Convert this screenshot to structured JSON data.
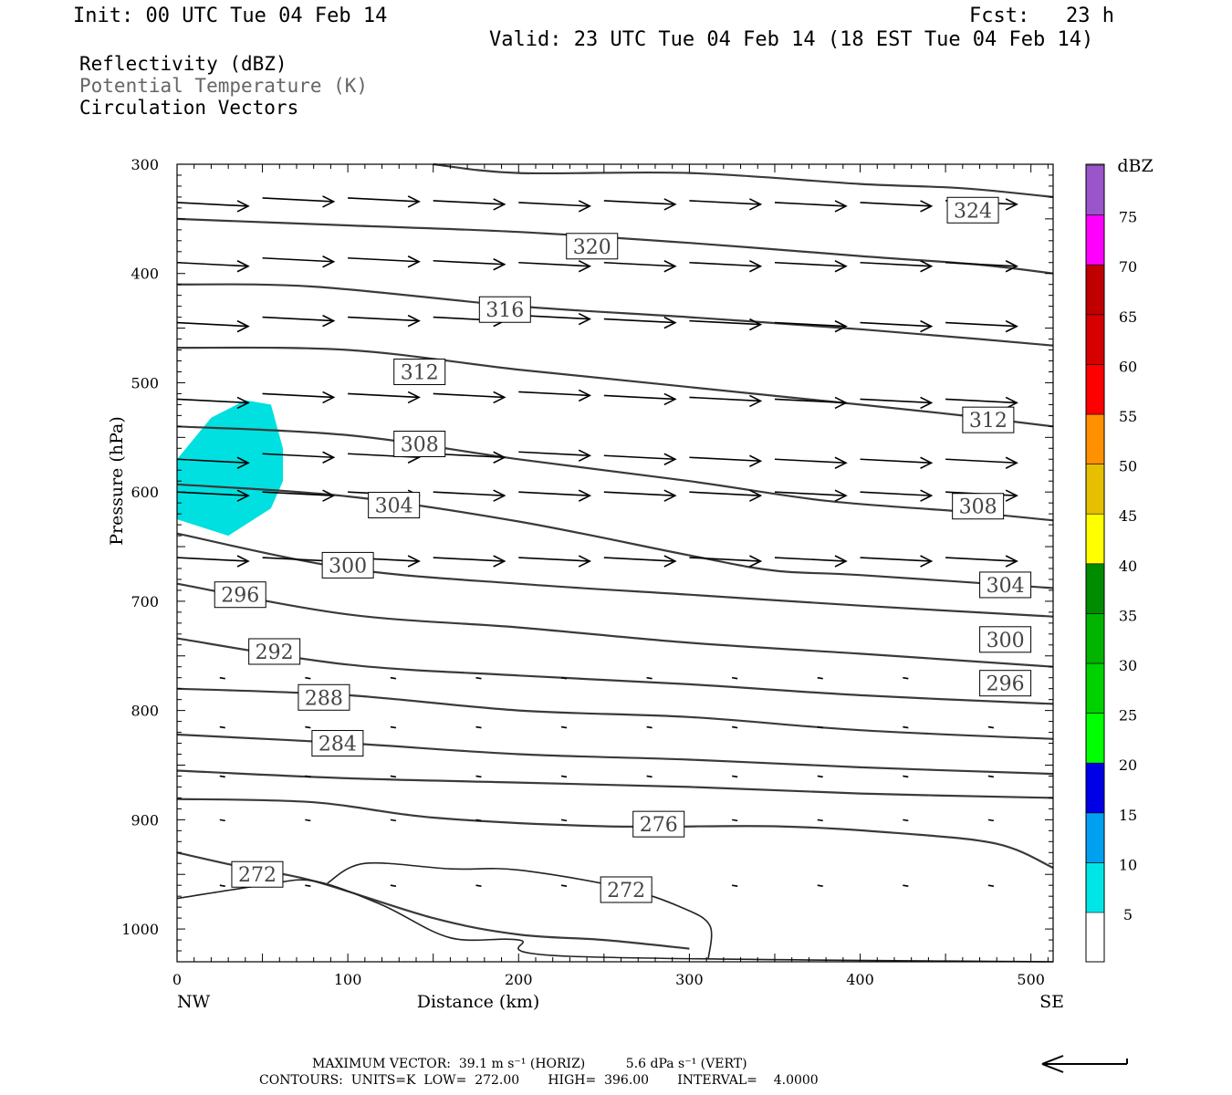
{
  "header": {
    "init": "Init: 00 UTC Tue 04 Feb 14",
    "fcst": "Fcst:   23 h",
    "valid": "Valid: 23 UTC Tue 04 Feb 14 (18 EST Tue 04 Feb 14)"
  },
  "fields": {
    "reflectivity": "Reflectivity (dBZ)",
    "theta": "Potential Temperature (K)",
    "vectors": "Circulation Vectors"
  },
  "footer": {
    "max_vector": "MAXIMUM VECTOR:  39.1 m s⁻¹ (HORIZ)          5.6 dPa s⁻¹ (VERT)",
    "contours": "CONTOURS:  UNITS=K  LOW=  272.00       HIGH=  396.00       INTERVAL=    4.0000"
  },
  "colors": {
    "contour": "#3a3a3a",
    "refl_cyan": "#00e0e0"
  },
  "chart_data": {
    "type": "cross-section",
    "xlabel": "Distance (km)",
    "ylabel": "Pressure (hPa)",
    "xlim": [
      0,
      513
    ],
    "ylim": [
      1030,
      300
    ],
    "x_ticks": [
      0,
      100,
      200,
      300,
      400,
      500
    ],
    "y_ticks": [
      300,
      400,
      500,
      600,
      700,
      800,
      900,
      1000
    ],
    "x_end_labels": {
      "left": "NW",
      "right": "SE"
    },
    "contour_levels": [
      {
        "level": "324",
        "points": [
          [
            150,
            300
          ],
          [
            200,
            308
          ],
          [
            300,
            308
          ],
          [
            400,
            318
          ],
          [
            460,
            322
          ],
          [
            513,
            330
          ]
        ]
      },
      {
        "level": "320",
        "points": [
          [
            0,
            350
          ],
          [
            100,
            356
          ],
          [
            200,
            362
          ],
          [
            300,
            372
          ],
          [
            400,
            384
          ],
          [
            470,
            392
          ],
          [
            513,
            400
          ]
        ]
      },
      {
        "level": "316",
        "points": [
          [
            0,
            410
          ],
          [
            80,
            412
          ],
          [
            200,
            430
          ],
          [
            300,
            440
          ],
          [
            400,
            451
          ],
          [
            470,
            460
          ],
          [
            513,
            466
          ]
        ]
      },
      {
        "level": "312",
        "points": [
          [
            0,
            468
          ],
          [
            100,
            470
          ],
          [
            200,
            488
          ],
          [
            300,
            504
          ],
          [
            400,
            520
          ],
          [
            460,
            530
          ],
          [
            513,
            540
          ]
        ]
      },
      {
        "level": "308",
        "points": [
          [
            0,
            540
          ],
          [
            100,
            548
          ],
          [
            200,
            570
          ],
          [
            300,
            590
          ],
          [
            380,
            608
          ],
          [
            460,
            618
          ],
          [
            513,
            626
          ]
        ]
      },
      {
        "level": "304",
        "points": [
          [
            0,
            593
          ],
          [
            100,
            604
          ],
          [
            200,
            627
          ],
          [
            300,
            658
          ],
          [
            350,
            672
          ],
          [
            400,
            676
          ],
          [
            513,
            688
          ]
        ]
      },
      {
        "level": "300",
        "points": [
          [
            0,
            638
          ],
          [
            100,
            670
          ],
          [
            200,
            684
          ],
          [
            300,
            694
          ],
          [
            400,
            704
          ],
          [
            513,
            714
          ]
        ]
      },
      {
        "level": "296",
        "points": [
          [
            0,
            684
          ],
          [
            100,
            712
          ],
          [
            200,
            724
          ],
          [
            300,
            738
          ],
          [
            400,
            748
          ],
          [
            513,
            760
          ]
        ]
      },
      {
        "level": "292",
        "points": [
          [
            0,
            734
          ],
          [
            100,
            758
          ],
          [
            200,
            768
          ],
          [
            300,
            776
          ],
          [
            400,
            786
          ],
          [
            513,
            794
          ]
        ]
      },
      {
        "level": "288",
        "points": [
          [
            0,
            780
          ],
          [
            100,
            786
          ],
          [
            200,
            800
          ],
          [
            300,
            806
          ],
          [
            400,
            818
          ],
          [
            513,
            826
          ]
        ]
      },
      {
        "level": "284",
        "points": [
          [
            0,
            822
          ],
          [
            100,
            830
          ],
          [
            200,
            840
          ],
          [
            300,
            845
          ],
          [
            400,
            852
          ],
          [
            513,
            858
          ]
        ]
      },
      {
        "level": "280",
        "points": [
          [
            0,
            855
          ],
          [
            100,
            862
          ],
          [
            200,
            866
          ],
          [
            300,
            870
          ],
          [
            400,
            876
          ],
          [
            513,
            880
          ]
        ]
      },
      {
        "level": "276",
        "points": [
          [
            0,
            881
          ],
          [
            80,
            884
          ],
          [
            150,
            898
          ],
          [
            250,
            906
          ],
          [
            350,
            906
          ],
          [
            420,
            912
          ],
          [
            480,
            922
          ],
          [
            513,
            944
          ]
        ]
      },
      {
        "level": "272",
        "points": [
          [
            0,
            930
          ],
          [
            40,
            944
          ],
          [
            80,
            956
          ],
          [
            150,
            990
          ],
          [
            200,
            1005
          ],
          [
            250,
            1010
          ],
          [
            300,
            1018
          ]
        ]
      }
    ],
    "contour_labels": [
      {
        "text": "324",
        "x": 466,
        "p": 342
      },
      {
        "text": "320",
        "x": 243,
        "p": 375
      },
      {
        "text": "316",
        "x": 192,
        "p": 433
      },
      {
        "text": "312",
        "x": 142,
        "p": 490
      },
      {
        "text": "312",
        "x": 475,
        "p": 534
      },
      {
        "text": "308",
        "x": 142,
        "p": 556
      },
      {
        "text": "308",
        "x": 469,
        "p": 613
      },
      {
        "text": "304",
        "x": 127,
        "p": 612
      },
      {
        "text": "304",
        "x": 485,
        "p": 685
      },
      {
        "text": "300",
        "x": 100,
        "p": 667
      },
      {
        "text": "300",
        "x": 485,
        "p": 735
      },
      {
        "text": "296",
        "x": 37,
        "p": 694
      },
      {
        "text": "296",
        "x": 485,
        "p": 775
      },
      {
        "text": "292",
        "x": 57,
        "p": 746
      },
      {
        "text": "288",
        "x": 86,
        "p": 788
      },
      {
        "text": "284",
        "x": 94,
        "p": 830
      },
      {
        "text": "276",
        "x": 282,
        "p": 904
      },
      {
        "text": "272",
        "x": 47,
        "p": 950
      },
      {
        "text": "272",
        "x": 263,
        "p": 964
      }
    ],
    "reflectivity_area": {
      "value_dbz": 5,
      "points": [
        [
          0,
          570
        ],
        [
          20,
          532
        ],
        [
          40,
          516
        ],
        [
          55,
          520
        ],
        [
          62,
          560
        ],
        [
          62,
          590
        ],
        [
          55,
          615
        ],
        [
          30,
          640
        ],
        [
          0,
          625
        ]
      ]
    },
    "vectors": [
      {
        "p": 335,
        "y_jitter": [
          0,
          -5,
          -5,
          -2,
          0,
          -2,
          -2,
          0,
          0,
          -2
        ]
      },
      {
        "p": 390,
        "y_jitter": [
          0,
          -5,
          -5,
          -2,
          0,
          0,
          0,
          0,
          0,
          0
        ]
      },
      {
        "p": 445,
        "y_jitter": [
          0,
          -6,
          -6,
          -6,
          -8,
          -4,
          -2,
          0,
          0,
          0
        ]
      },
      {
        "p": 515,
        "y_jitter": [
          0,
          -6,
          -6,
          -6,
          -8,
          -4,
          -2,
          0,
          0,
          0
        ]
      },
      {
        "p": 570,
        "y_jitter": [
          0,
          -6,
          -6,
          -6,
          -8,
          -4,
          -2,
          0,
          0,
          0
        ]
      },
      {
        "p": 600,
        "y_jitter": [
          0,
          0,
          0,
          0,
          0,
          0,
          0,
          0,
          0,
          0
        ]
      },
      {
        "p": 660,
        "y_jitter": [
          0,
          0,
          0,
          0,
          0,
          0,
          0,
          0,
          0,
          0
        ]
      }
    ],
    "legend": {
      "title": "dBZ",
      "bins": [
        {
          "label": "5",
          "color": "#00e6e6"
        },
        {
          "label": "10",
          "color": "#00a0f0"
        },
        {
          "label": "15",
          "color": "#0000e6"
        },
        {
          "label": "20",
          "color": "#00ff00"
        },
        {
          "label": "25",
          "color": "#00d200"
        },
        {
          "label": "30",
          "color": "#00b400"
        },
        {
          "label": "35",
          "color": "#008c00"
        },
        {
          "label": "40",
          "color": "#ffff00"
        },
        {
          "label": "45",
          "color": "#e6c000"
        },
        {
          "label": "50",
          "color": "#ff9000"
        },
        {
          "label": "55",
          "color": "#ff0000"
        },
        {
          "label": "60",
          "color": "#d60000"
        },
        {
          "label": "65",
          "color": "#c00000"
        },
        {
          "label": "70",
          "color": "#ff00ff"
        },
        {
          "label": "75",
          "color": "#9955c9"
        }
      ]
    }
  }
}
